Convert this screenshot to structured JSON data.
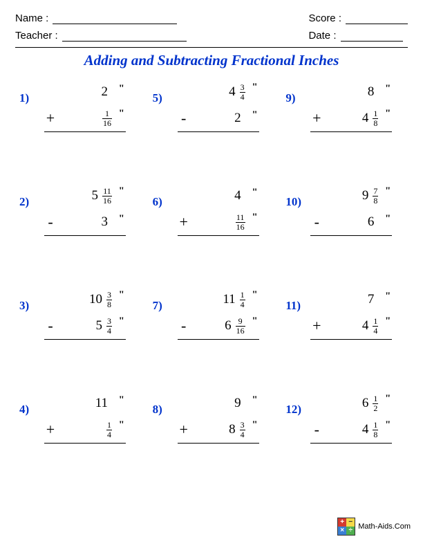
{
  "header": {
    "name_label": "Name :",
    "teacher_label": "Teacher :",
    "score_label": "Score :",
    "date_label": "Date :"
  },
  "title": {
    "text": "Adding and Subtracting Fractional Inches",
    "color": "#0033cc"
  },
  "number_color": "#0033cc",
  "columns": 3,
  "rows": 4,
  "problems": [
    {
      "n": "1)",
      "op": "+",
      "a": {
        "w": "2",
        "num": "",
        "den": ""
      },
      "b": {
        "w": "",
        "num": "1",
        "den": "16"
      }
    },
    {
      "n": "5)",
      "op": "-",
      "a": {
        "w": "4",
        "num": "3",
        "den": "4"
      },
      "b": {
        "w": "2",
        "num": "",
        "den": ""
      }
    },
    {
      "n": "9)",
      "op": "+",
      "a": {
        "w": "8",
        "num": "",
        "den": ""
      },
      "b": {
        "w": "4",
        "num": "1",
        "den": "8"
      }
    },
    {
      "n": "2)",
      "op": "-",
      "a": {
        "w": "5",
        "num": "11",
        "den": "16"
      },
      "b": {
        "w": "3",
        "num": "",
        "den": ""
      }
    },
    {
      "n": "6)",
      "op": "+",
      "a": {
        "w": "4",
        "num": "",
        "den": ""
      },
      "b": {
        "w": "",
        "num": "11",
        "den": "16"
      }
    },
    {
      "n": "10)",
      "op": "-",
      "a": {
        "w": "9",
        "num": "7",
        "den": "8"
      },
      "b": {
        "w": "6",
        "num": "",
        "den": ""
      }
    },
    {
      "n": "3)",
      "op": "-",
      "a": {
        "w": "10",
        "num": "3",
        "den": "8"
      },
      "b": {
        "w": "5",
        "num": "3",
        "den": "4"
      }
    },
    {
      "n": "7)",
      "op": "-",
      "a": {
        "w": "11",
        "num": "1",
        "den": "4"
      },
      "b": {
        "w": "6",
        "num": "9",
        "den": "16"
      }
    },
    {
      "n": "11)",
      "op": "+",
      "a": {
        "w": "7",
        "num": "",
        "den": ""
      },
      "b": {
        "w": "4",
        "num": "1",
        "den": "4"
      }
    },
    {
      "n": "4)",
      "op": "+",
      "a": {
        "w": "11",
        "num": "",
        "den": ""
      },
      "b": {
        "w": "",
        "num": "1",
        "den": "4"
      }
    },
    {
      "n": "8)",
      "op": "+",
      "a": {
        "w": "9",
        "num": "",
        "den": ""
      },
      "b": {
        "w": "8",
        "num": "3",
        "den": "4"
      }
    },
    {
      "n": "12)",
      "op": "-",
      "a": {
        "w": "6",
        "num": "1",
        "den": "2"
      },
      "b": {
        "w": "4",
        "num": "1",
        "den": "8"
      }
    }
  ],
  "inch_mark": "\"",
  "footer": {
    "text": "Math-Aids.Com",
    "logo_cells": [
      {
        "sym": "+",
        "bg": "#d43a2f",
        "fg": "#ffffff"
      },
      {
        "sym": "−",
        "bg": "#f4d94a",
        "fg": "#333333"
      },
      {
        "sym": "×",
        "bg": "#3a7fd4",
        "fg": "#ffffff"
      },
      {
        "sym": "÷",
        "bg": "#4fae4f",
        "fg": "#ffffff"
      }
    ]
  }
}
